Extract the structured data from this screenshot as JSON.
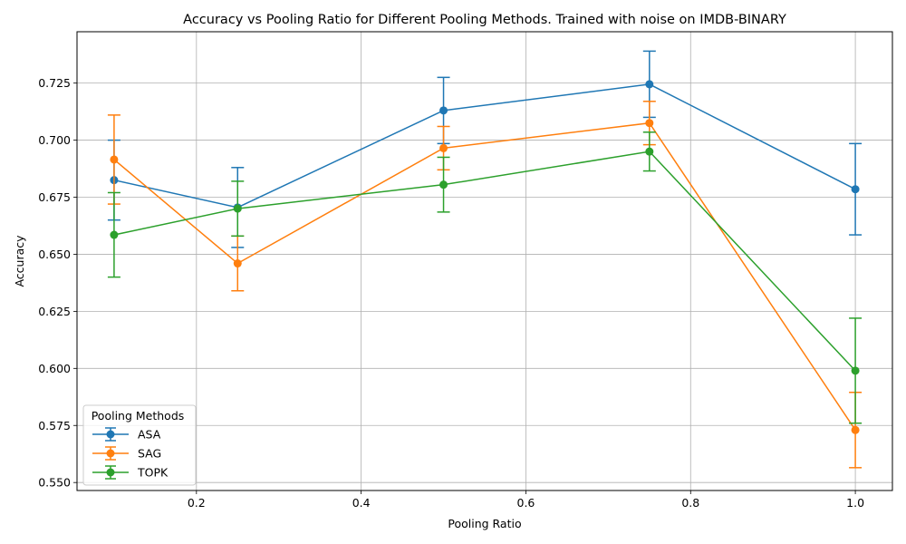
{
  "chart_data": {
    "type": "line",
    "title": "Accuracy vs Pooling Ratio for Different Pooling Methods. Trained with noise on IMDB-BINARY",
    "xlabel": "Pooling Ratio",
    "ylabel": "Accuracy",
    "xlim": [
      0.055,
      1.045
    ],
    "ylim": [
      0.5465,
      0.7475
    ],
    "xticks": [
      0.2,
      0.4,
      0.6,
      0.8,
      1.0
    ],
    "xtick_labels": [
      "0.2",
      "0.4",
      "0.6",
      "0.8",
      "1.0"
    ],
    "yticks": [
      0.55,
      0.575,
      0.6,
      0.625,
      0.65,
      0.675,
      0.7,
      0.725
    ],
    "ytick_labels": [
      "0.550",
      "0.575",
      "0.600",
      "0.625",
      "0.650",
      "0.675",
      "0.700",
      "0.725"
    ],
    "grid": true,
    "legend": {
      "title": "Pooling Methods",
      "placement": "lower-left"
    },
    "x": [
      0.1,
      0.25,
      0.5,
      0.75,
      1.0
    ],
    "series": [
      {
        "name": "ASA",
        "color": "#1f77b4",
        "values": [
          0.6825,
          0.6705,
          0.713,
          0.7245,
          0.6785
        ],
        "errors": [
          0.0175,
          0.0175,
          0.0145,
          0.0145,
          0.02
        ]
      },
      {
        "name": "SAG",
        "color": "#ff7f0e",
        "values": [
          0.6915,
          0.646,
          0.6965,
          0.7075,
          0.573
        ],
        "errors": [
          0.0195,
          0.012,
          0.0095,
          0.0095,
          0.0165
        ]
      },
      {
        "name": "TOPK",
        "color": "#2ca02c",
        "values": [
          0.6585,
          0.67,
          0.6805,
          0.695,
          0.599
        ],
        "errors": [
          0.0185,
          0.012,
          0.012,
          0.0085,
          0.023
        ]
      }
    ]
  }
}
